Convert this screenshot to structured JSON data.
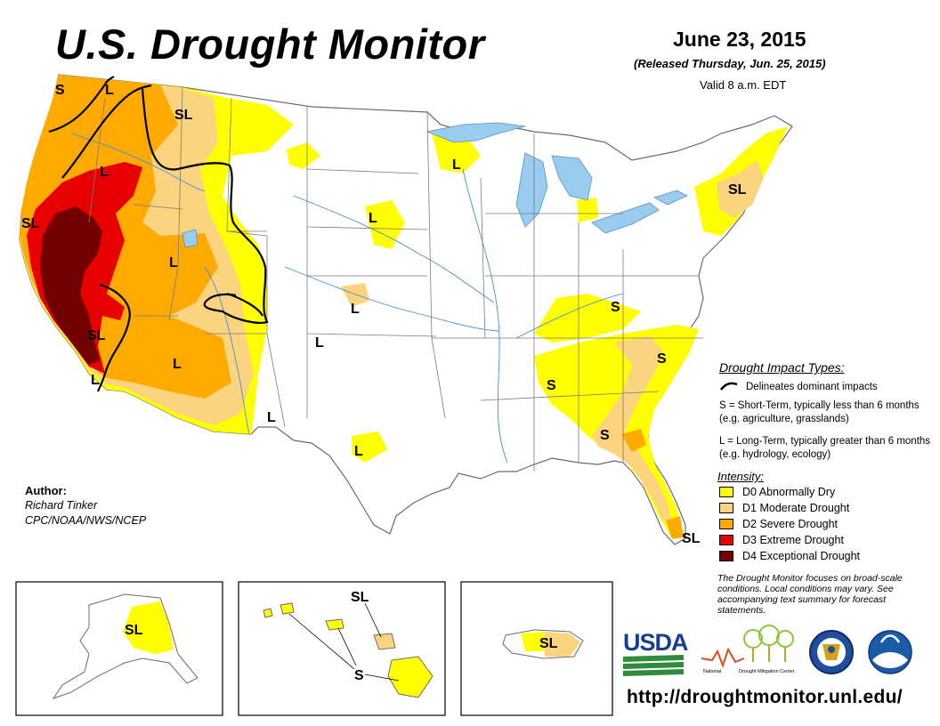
{
  "title": "U.S. Drought Monitor",
  "date": "June 23, 2015",
  "released": "(Released Thursday, Jun. 25, 2015)",
  "valid": "Valid 8 a.m. EDT",
  "impact_types": {
    "title": "Drought Impact Types:",
    "line": "Delineates dominant impacts",
    "short_term": "S = Short-Term, typically less than 6 months (e.g. agriculture, grasslands)",
    "long_term": "L = Long-Term, typically greater than 6 months (e.g. hydrology, ecology)"
  },
  "intensity": {
    "title": "Intensity:",
    "items": [
      {
        "code": "D0",
        "label": "D0 Abnormally Dry",
        "color": "#ffff00"
      },
      {
        "code": "D1",
        "label": "D1 Moderate Drought",
        "color": "#fcd37f"
      },
      {
        "code": "D2",
        "label": "D2 Severe Drought",
        "color": "#ffaa00"
      },
      {
        "code": "D3",
        "label": "D3 Extreme Drought",
        "color": "#e60000"
      },
      {
        "code": "D4",
        "label": "D4 Exceptional Drought",
        "color": "#730000"
      }
    ]
  },
  "author": {
    "heading": "Author:",
    "name": "Richard Tinker",
    "org": "CPC/NOAA/NWS/NCEP"
  },
  "note": "The Drought Monitor focuses on broad-scale conditions. Local conditions may vary. See accompanying text summary for forecast statements.",
  "url": "http://droughtmonitor.unl.edu/",
  "logos": {
    "usda": "USDA",
    "ndmc": "National Drought Mitigation Center",
    "doc_icon": "department-of-commerce-seal-icon",
    "noaa_icon": "noaa-logo-icon"
  },
  "map_labels": {
    "conus": [
      "S",
      "L",
      "SL",
      "L",
      "SL",
      "L",
      "L",
      "L",
      "SL",
      "L",
      "L",
      "L",
      "L",
      "L",
      "L",
      "SL",
      "S",
      "S",
      "S",
      "S",
      "SL"
    ],
    "alaska": "SL",
    "hawaii": [
      "SL",
      "S"
    ],
    "puerto_rico": "SL"
  },
  "colors": {
    "water": "#99ccee",
    "river": "#3f8fdd",
    "boundary": "#777777",
    "impact_line": "#000000"
  }
}
